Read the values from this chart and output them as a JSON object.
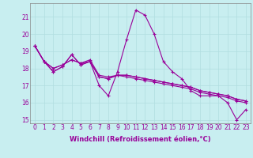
{
  "xlabel": "Windchill (Refroidissement éolien,°C)",
  "background_color": "#c8eef0",
  "line_color": "#990099",
  "grid_color": "#b0dde0",
  "xmin": -0.5,
  "xmax": 23.5,
  "ymin": 14.8,
  "ymax": 21.8,
  "yticks": [
    15,
    16,
    17,
    18,
    19,
    20,
    21
  ],
  "xticks": [
    0,
    1,
    2,
    3,
    4,
    5,
    6,
    7,
    8,
    9,
    10,
    11,
    12,
    13,
    14,
    15,
    16,
    17,
    18,
    19,
    20,
    21,
    22,
    23
  ],
  "series": [
    [
      19.3,
      18.4,
      17.8,
      18.1,
      18.8,
      18.2,
      18.4,
      17.0,
      16.4,
      17.8,
      19.7,
      21.4,
      21.1,
      20.0,
      18.4,
      17.8,
      17.4,
      16.7,
      16.4,
      16.4,
      16.4,
      16.0,
      15.0,
      15.6
    ],
    [
      19.3,
      18.4,
      18.0,
      18.2,
      18.5,
      18.3,
      18.4,
      17.5,
      17.4,
      17.6,
      17.5,
      17.4,
      17.3,
      17.2,
      17.1,
      17.0,
      16.9,
      16.8,
      16.6,
      16.5,
      16.4,
      16.3,
      16.1,
      16.0
    ],
    [
      19.3,
      18.4,
      18.0,
      18.2,
      18.5,
      18.3,
      18.5,
      17.6,
      17.5,
      17.6,
      17.6,
      17.5,
      17.4,
      17.3,
      17.2,
      17.1,
      17.0,
      16.9,
      16.7,
      16.6,
      16.5,
      16.4,
      16.2,
      16.1
    ],
    [
      19.3,
      18.4,
      17.8,
      18.1,
      18.8,
      18.2,
      18.4,
      17.5,
      17.4,
      17.6,
      17.6,
      17.5,
      17.4,
      17.3,
      17.2,
      17.1,
      17.0,
      16.9,
      16.7,
      16.6,
      16.5,
      16.4,
      16.2,
      16.1
    ]
  ],
  "tick_fontsize": 5.5,
  "xlabel_fontsize": 6,
  "marker_size": 3,
  "linewidth": 0.8
}
